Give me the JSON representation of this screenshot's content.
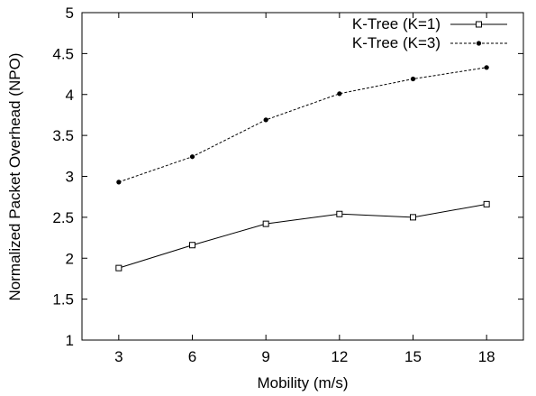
{
  "chart_data": {
    "type": "line",
    "title": "",
    "xlabel": "Mobility (m/s)",
    "ylabel": "Normalized Packet Overhead (NPO)",
    "x": [
      3,
      6,
      9,
      12,
      15,
      18
    ],
    "xlim": [
      1.5,
      19.5
    ],
    "ylim": [
      1,
      5
    ],
    "xticks": [
      "3",
      "6",
      "9",
      "12",
      "15",
      "18"
    ],
    "yticks": [
      "1",
      "1.5",
      "2",
      "2.5",
      "3",
      "3.5",
      "4",
      "4.5",
      "5"
    ],
    "grid": false,
    "legend_position": "top-right",
    "series": [
      {
        "name": "K-Tree (K=1)",
        "values": [
          1.88,
          2.16,
          2.42,
          2.54,
          2.5,
          2.66
        ],
        "line_style": "solid",
        "marker": "open-square",
        "color": "#000000"
      },
      {
        "name": "K-Tree (K=3)",
        "values": [
          2.93,
          3.24,
          3.69,
          4.01,
          4.19,
          4.33
        ],
        "line_style": "dashed",
        "marker": "filled-circle",
        "color": "#000000"
      }
    ]
  }
}
